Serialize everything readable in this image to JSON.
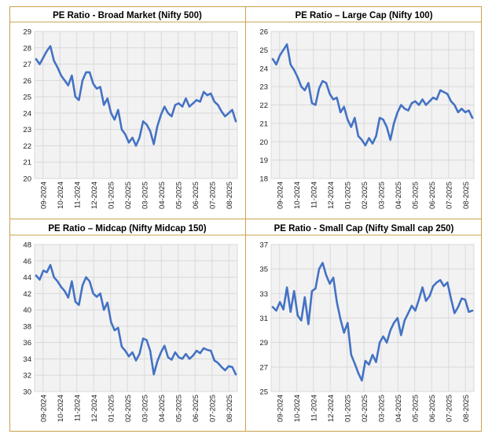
{
  "chart_data": [
    {
      "type": "line",
      "title": "PE Ratio - Broad Market (Nifty 500)",
      "ylim": [
        20,
        29
      ],
      "yticks": [
        20,
        21,
        22,
        23,
        24,
        25,
        26,
        27,
        28,
        29
      ],
      "xticks": [
        "09-2024",
        "10-2024",
        "11-2024",
        "12-2024",
        "01-2025",
        "02-2025",
        "03-2025",
        "04-2025",
        "05-2025",
        "06-2025",
        "07-2025",
        "08-2025"
      ],
      "color": "#4472c4",
      "grid": true,
      "x": [
        "09-2024",
        "09-2024",
        "09-2024",
        "09-2024",
        "09-2024",
        "10-2024",
        "10-2024",
        "10-2024",
        "10-2024",
        "10-2024",
        "11-2024",
        "11-2024",
        "11-2024",
        "11-2024",
        "11-2024",
        "12-2024",
        "12-2024",
        "12-2024",
        "12-2024",
        "12-2024",
        "01-2025",
        "01-2025",
        "01-2025",
        "01-2025",
        "01-2025",
        "02-2025",
        "02-2025",
        "02-2025",
        "02-2025",
        "03-2025",
        "03-2025",
        "03-2025",
        "03-2025",
        "03-2025",
        "04-2025",
        "04-2025",
        "04-2025",
        "04-2025",
        "05-2025",
        "05-2025",
        "05-2025",
        "05-2025",
        "05-2025",
        "06-2025",
        "06-2025",
        "06-2025",
        "06-2025",
        "07-2025",
        "07-2025",
        "07-2025",
        "07-2025",
        "07-2025",
        "08-2025",
        "08-2025",
        "08-2025",
        "08-2025",
        "08-2025"
      ],
      "values": [
        27.3,
        27.0,
        27.4,
        27.8,
        28.1,
        27.2,
        26.8,
        26.3,
        26.0,
        25.7,
        26.3,
        25.0,
        24.8,
        26.0,
        26.5,
        26.5,
        25.8,
        25.5,
        25.6,
        24.5,
        24.9,
        24.0,
        23.6,
        24.2,
        23.0,
        22.7,
        22.2,
        22.5,
        22.0,
        22.5,
        23.5,
        23.3,
        22.9,
        22.1,
        23.2,
        23.9,
        24.4,
        24.0,
        23.8,
        24.5,
        24.6,
        24.4,
        24.9,
        24.4,
        24.6,
        24.8,
        24.7,
        25.3,
        25.1,
        25.2,
        24.7,
        24.5,
        24.1,
        23.8,
        24.0,
        24.2,
        23.5
      ]
    },
    {
      "type": "line",
      "title": "PE Ratio – Large Cap (Nifty 100)",
      "ylim": [
        18,
        26
      ],
      "yticks": [
        18,
        19,
        20,
        21,
        22,
        23,
        24,
        25,
        26
      ],
      "xticks": [
        "09-2024",
        "10-2024",
        "11-2024",
        "12-2024",
        "01-2025",
        "02-2025",
        "03-2025",
        "04-2025",
        "05-2025",
        "06-2025",
        "07-2025",
        "08-2025"
      ],
      "color": "#4472c4",
      "grid": true,
      "x": [
        "09-2024",
        "09-2024",
        "09-2024",
        "09-2024",
        "09-2024",
        "10-2024",
        "10-2024",
        "10-2024",
        "10-2024",
        "10-2024",
        "11-2024",
        "11-2024",
        "11-2024",
        "11-2024",
        "11-2024",
        "12-2024",
        "12-2024",
        "12-2024",
        "12-2024",
        "12-2024",
        "01-2025",
        "01-2025",
        "01-2025",
        "01-2025",
        "01-2025",
        "02-2025",
        "02-2025",
        "02-2025",
        "02-2025",
        "03-2025",
        "03-2025",
        "03-2025",
        "03-2025",
        "03-2025",
        "04-2025",
        "04-2025",
        "04-2025",
        "04-2025",
        "05-2025",
        "05-2025",
        "05-2025",
        "05-2025",
        "05-2025",
        "06-2025",
        "06-2025",
        "06-2025",
        "06-2025",
        "07-2025",
        "07-2025",
        "07-2025",
        "07-2025",
        "07-2025",
        "08-2025",
        "08-2025",
        "08-2025",
        "08-2025",
        "08-2025"
      ],
      "values": [
        24.5,
        24.2,
        24.7,
        25.0,
        25.3,
        24.2,
        23.9,
        23.5,
        23.0,
        22.8,
        23.2,
        22.1,
        22.0,
        22.9,
        23.3,
        23.2,
        22.6,
        22.3,
        22.4,
        21.6,
        21.9,
        21.2,
        20.8,
        21.3,
        20.3,
        20.1,
        19.8,
        20.2,
        19.9,
        20.3,
        21.3,
        21.2,
        20.8,
        20.1,
        21.0,
        21.6,
        22.0,
        21.8,
        21.7,
        22.1,
        22.2,
        22.0,
        22.3,
        22.0,
        22.2,
        22.4,
        22.3,
        22.8,
        22.7,
        22.6,
        22.2,
        22.0,
        21.6,
        21.8,
        21.6,
        21.7,
        21.3
      ]
    },
    {
      "type": "line",
      "title": "PE Ratio – Midcap (Nifty Midcap 150)",
      "ylim": [
        30,
        48
      ],
      "yticks": [
        30,
        32,
        34,
        36,
        38,
        40,
        42,
        44,
        46,
        48
      ],
      "xticks": [
        "09-2024",
        "10-2024",
        "11-2024",
        "12-2024",
        "01-2025",
        "02-2025",
        "03-2025",
        "04-2025",
        "05-2025",
        "06-2025",
        "07-2025",
        "08-2025"
      ],
      "color": "#4472c4",
      "grid": true,
      "x": [
        "09-2024",
        "09-2024",
        "09-2024",
        "09-2024",
        "09-2024",
        "10-2024",
        "10-2024",
        "10-2024",
        "10-2024",
        "10-2024",
        "11-2024",
        "11-2024",
        "11-2024",
        "11-2024",
        "11-2024",
        "12-2024",
        "12-2024",
        "12-2024",
        "12-2024",
        "12-2024",
        "01-2025",
        "01-2025",
        "01-2025",
        "01-2025",
        "01-2025",
        "02-2025",
        "02-2025",
        "02-2025",
        "02-2025",
        "03-2025",
        "03-2025",
        "03-2025",
        "03-2025",
        "03-2025",
        "04-2025",
        "04-2025",
        "04-2025",
        "04-2025",
        "05-2025",
        "05-2025",
        "05-2025",
        "05-2025",
        "05-2025",
        "06-2025",
        "06-2025",
        "06-2025",
        "06-2025",
        "07-2025",
        "07-2025",
        "07-2025",
        "07-2025",
        "07-2025",
        "08-2025",
        "08-2025",
        "08-2025",
        "08-2025",
        "08-2025"
      ],
      "values": [
        44.2,
        43.7,
        44.8,
        44.6,
        45.5,
        44.0,
        43.5,
        42.8,
        42.3,
        41.5,
        43.5,
        41.0,
        40.6,
        43.0,
        44.0,
        43.5,
        42.0,
        41.6,
        42.0,
        40.0,
        40.9,
        38.5,
        37.5,
        37.8,
        35.5,
        35.0,
        34.3,
        34.8,
        33.8,
        34.6,
        36.5,
        36.3,
        35.0,
        32.1,
        33.7,
        34.8,
        35.6,
        34.2,
        33.9,
        34.8,
        34.2,
        34.0,
        34.6,
        34.0,
        34.4,
        35.0,
        34.7,
        35.3,
        35.1,
        35.0,
        33.8,
        33.5,
        33.0,
        32.6,
        33.1,
        33.0,
        32.1
      ]
    },
    {
      "type": "line",
      "title": "PE Ratio - Small Cap (Nifty Small cap 250)",
      "ylim": [
        25,
        37
      ],
      "yticks": [
        25,
        27,
        29,
        31,
        33,
        35,
        37
      ],
      "xticks": [
        "09-2024",
        "10-2024",
        "11-2024",
        "12-2024",
        "01-2025",
        "02-2025",
        "03-2025",
        "04-2025",
        "05-2025",
        "06-2025",
        "07-2025",
        "08-2025"
      ],
      "color": "#4472c4",
      "grid": true,
      "x": [
        "09-2024",
        "09-2024",
        "09-2024",
        "09-2024",
        "09-2024",
        "10-2024",
        "10-2024",
        "10-2024",
        "10-2024",
        "10-2024",
        "11-2024",
        "11-2024",
        "11-2024",
        "11-2024",
        "11-2024",
        "12-2024",
        "12-2024",
        "12-2024",
        "12-2024",
        "12-2024",
        "01-2025",
        "01-2025",
        "01-2025",
        "01-2025",
        "01-2025",
        "02-2025",
        "02-2025",
        "02-2025",
        "02-2025",
        "03-2025",
        "03-2025",
        "03-2025",
        "03-2025",
        "03-2025",
        "04-2025",
        "04-2025",
        "04-2025",
        "04-2025",
        "05-2025",
        "05-2025",
        "05-2025",
        "05-2025",
        "05-2025",
        "06-2025",
        "06-2025",
        "06-2025",
        "06-2025",
        "07-2025",
        "07-2025",
        "07-2025",
        "07-2025",
        "07-2025",
        "08-2025",
        "08-2025",
        "08-2025",
        "08-2025",
        "08-2025"
      ],
      "values": [
        31.9,
        31.6,
        32.3,
        31.7,
        33.5,
        31.5,
        33.2,
        31.2,
        30.8,
        32.7,
        30.5,
        33.2,
        33.4,
        35.0,
        35.5,
        34.5,
        33.8,
        34.3,
        32.3,
        30.9,
        29.8,
        30.6,
        28.0,
        27.3,
        26.5,
        25.9,
        27.5,
        27.2,
        28.0,
        27.4,
        29.0,
        29.5,
        29.0,
        30.0,
        30.6,
        31.0,
        29.6,
        30.8,
        31.4,
        32.0,
        31.6,
        32.5,
        33.5,
        32.4,
        32.8,
        33.6,
        33.9,
        34.1,
        33.6,
        33.9,
        32.6,
        31.4,
        31.9,
        32.6,
        32.5,
        31.5,
        31.6
      ]
    }
  ]
}
